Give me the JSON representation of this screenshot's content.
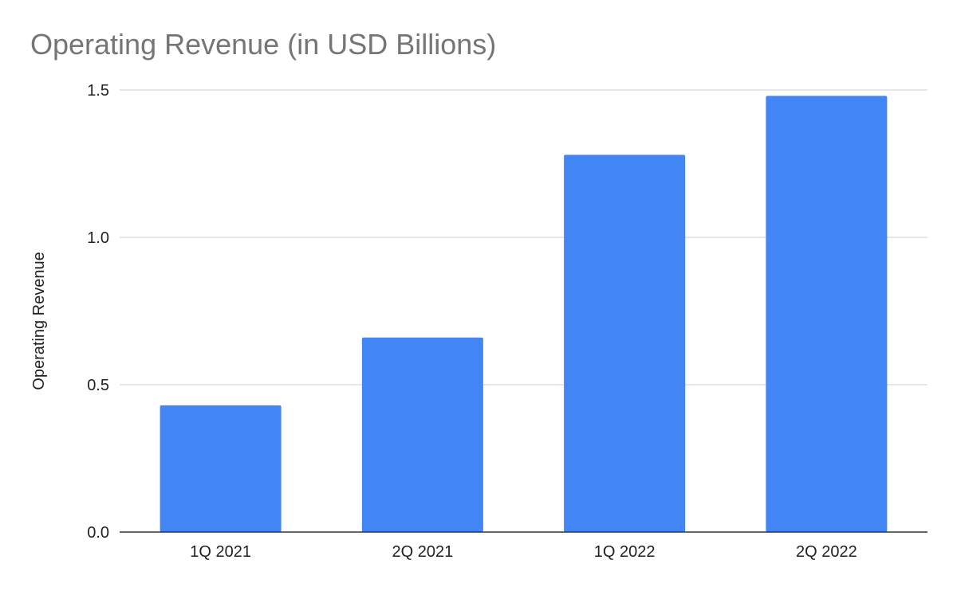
{
  "chart_data": {
    "type": "bar",
    "title": "Operating Revenue (in USD Billions)",
    "xlabel": "",
    "ylabel": "Operating Revenue",
    "categories": [
      "1Q 2021",
      "2Q 2021",
      "1Q 2022",
      "2Q 2022"
    ],
    "series": [
      {
        "values": [
          0.43,
          0.66,
          1.28,
          1.48
        ],
        "color": "#4285f4"
      }
    ],
    "ylim": [
      0,
      1.5
    ],
    "yticks": [
      "0.0",
      "0.5",
      "1.0",
      "1.5"
    ],
    "grid": true,
    "legend": "none"
  }
}
